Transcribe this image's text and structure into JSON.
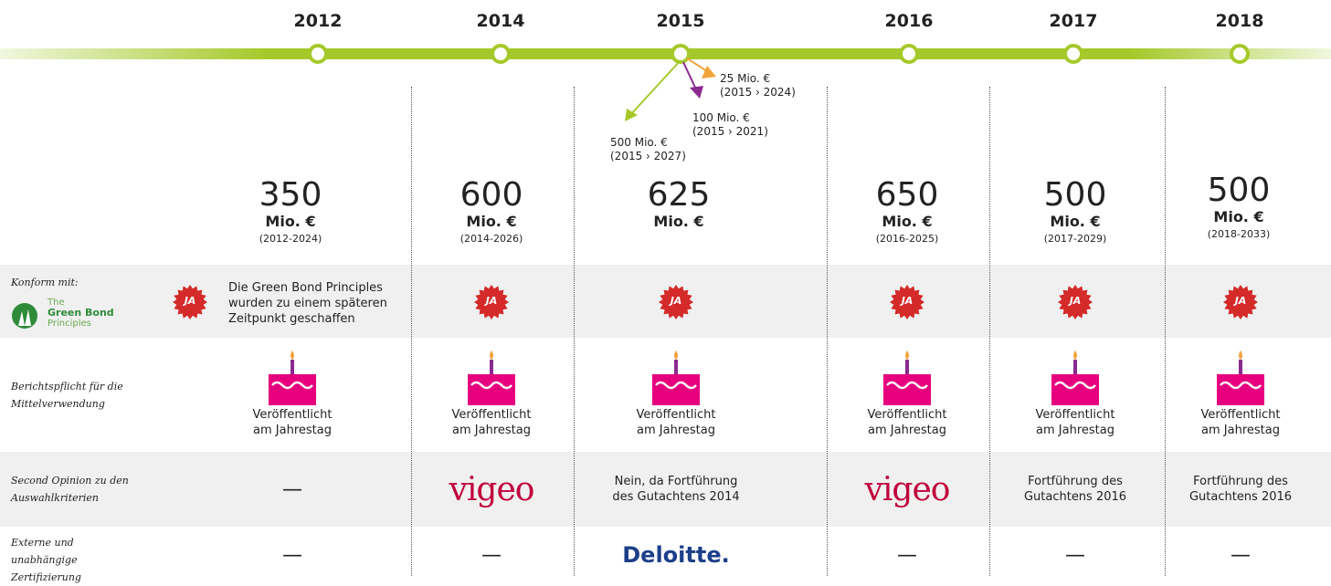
{
  "timeline": {
    "years": [
      "2012",
      "2014",
      "2015",
      "2016",
      "2017",
      "2018"
    ]
  },
  "issues": [
    {
      "amount": "350",
      "unit": "Mio. €",
      "term": "(2012-2024)"
    },
    {
      "amount": "600",
      "unit": "Mio. €",
      "term": "(2014-2026)"
    },
    {
      "amount": "625",
      "unit": "Mio. €"
    },
    {
      "amount": "650",
      "unit": "Mio. €",
      "term": "(2016-2025)"
    },
    {
      "amount": "500",
      "unit": "Mio. €",
      "term": "(2017-2029)"
    },
    {
      "amount": "500",
      "unit": "Mio. €",
      "term": "(2018-2033)"
    }
  ],
  "tranches": [
    {
      "amount": "25 Mio. €",
      "term": "(2015 › 2024)"
    },
    {
      "amount": "100 Mio. €",
      "term": "(2015 › 2021)"
    },
    {
      "amount": "500 Mio. €",
      "term": "(2015 › 2027)"
    }
  ],
  "rows": [
    {
      "label": "Konform mit:",
      "logo": {
        "line1": "The",
        "line2": "Green Bond",
        "line3": "Principles"
      },
      "cells": [
        {
          "badge": "JA",
          "note": "Die Green Bond Principles wurden zu einem späteren Zeitpunkt geschaffen"
        },
        {
          "badge": "JA"
        },
        {
          "badge": "JA"
        },
        {
          "badge": "JA"
        },
        {
          "badge": "JA"
        },
        {
          "badge": "JA"
        }
      ]
    },
    {
      "label": "Berichtspflicht für die Mittelverwendung",
      "cells": [
        "Veröffentlicht am Jahrestag",
        "Veröffentlicht am Jahrestag",
        "Veröffentlicht am Jahrestag",
        "Veröffentlicht am Jahrestag",
        "Veröffentlicht am Jahrestag",
        "Veröffentlicht am Jahrestag"
      ]
    },
    {
      "label": "Second Opinion zu den Auswahlkriterien",
      "cells": [
        "—",
        "vigeo",
        "Nein, da Fortführung des Gutachtens 2014",
        "vigeo",
        "Fortführung des Gutachtens 2016",
        "Fortführung des Gutachtens 2016"
      ]
    },
    {
      "label": "Externe und unabhängige Zertifizierung",
      "cells": [
        "—",
        "—",
        "Deloitte.",
        "—",
        "—",
        "—"
      ]
    }
  ]
}
